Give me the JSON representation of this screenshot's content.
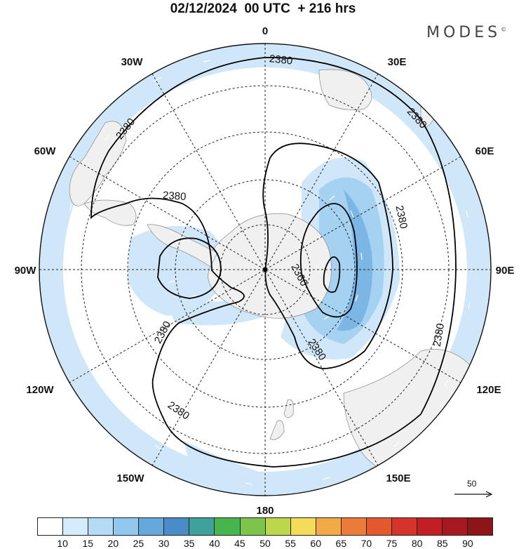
{
  "title": "02/12/2024  00 UTC  + 216 hrs",
  "brand": "MODES",
  "brand_mark": "©",
  "longitude_labels": {
    "top": "0",
    "bottom": "180",
    "left": "90W",
    "right": "90E",
    "upper_left_inner": "30W",
    "upper_left_outer": "60W",
    "upper_right_inner": "30E",
    "upper_right_outer": "60E",
    "lower_left_outer": "120W",
    "lower_left_inner": "150W",
    "lower_right_outer": "120E",
    "lower_right_inner": "150E"
  },
  "contour_labels": [
    "2380",
    "2380",
    "2380",
    "2380",
    "2380",
    "2380",
    "2380",
    "2380",
    "2380",
    "2360"
  ],
  "vector_reference": "50",
  "colorbar": {
    "labels": [
      "10",
      "15",
      "20",
      "25",
      "30",
      "35",
      "40",
      "45",
      "50",
      "55",
      "60",
      "65",
      "70",
      "75",
      "80",
      "85",
      "90"
    ],
    "colors": [
      "#ffffff",
      "#d4ecfb",
      "#b4dcf6",
      "#90c8ee",
      "#66a8dc",
      "#4a8cc8",
      "#3fa29a",
      "#46b54e",
      "#7cc44a",
      "#bcd74a",
      "#f2dc5a",
      "#f2aa46",
      "#ec7a38",
      "#e4582e",
      "#d6342a",
      "#c21e26",
      "#a81820",
      "#8e1418"
    ]
  },
  "colors": {
    "land": "#f0f0f0",
    "contour": "#000000",
    "wind_light": "#cfe7f8",
    "wind_mid": "#a5d2f1",
    "wind_strong": "#7bb6e4"
  }
}
